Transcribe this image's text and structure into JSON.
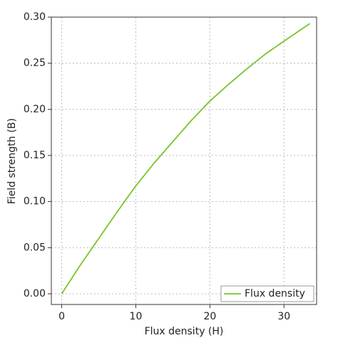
{
  "chart_data": {
    "type": "line",
    "x": [
      0,
      2.5,
      5,
      7.5,
      10,
      12.5,
      15,
      17.5,
      20,
      22.5,
      25,
      27.5,
      30,
      33.5
    ],
    "series": [
      {
        "name": "Flux density",
        "color": "#76c62a",
        "values": [
          0,
          0.031,
          0.06,
          0.089,
          0.117,
          0.142,
          0.165,
          0.188,
          0.209,
          0.227,
          0.244,
          0.26,
          0.274,
          0.293
        ]
      }
    ],
    "x_label": "Flux density (H)",
    "y_label": "Field strength (B)",
    "xlim": [
      -1.4,
      34.4
    ],
    "ylim": [
      -0.0116,
      0.3
    ],
    "xticks": [
      0,
      10,
      20,
      30
    ],
    "yticks": [
      {
        "value": 0,
        "label": "0.00"
      },
      {
        "value": 0.05,
        "label": "0.05"
      },
      {
        "value": 0.1,
        "label": "0.10"
      },
      {
        "value": 0.15,
        "label": "0.15"
      },
      {
        "value": 0.2,
        "label": "0.20"
      },
      {
        "value": 0.25,
        "label": "0.25"
      },
      {
        "value": 0.3,
        "label": "0.30"
      }
    ],
    "grid": true,
    "legend": "lower right"
  }
}
